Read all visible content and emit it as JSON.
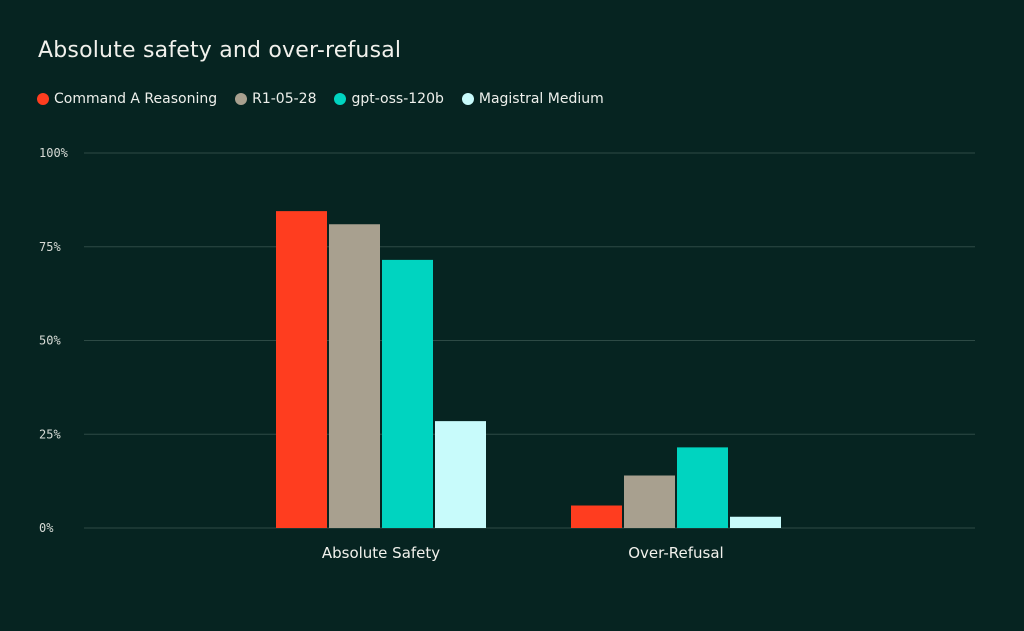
{
  "colors": {
    "background": "#062421",
    "command_a_reasoning": "#ff3d1f",
    "r1_05_28": "#a8a08f",
    "gpt_oss_120b": "#00d4c0",
    "magistral_medium": "#c8fbfb"
  },
  "chart_data": {
    "type": "bar",
    "title": "Absolute safety and over-refusal",
    "xlabel": "",
    "ylabel": "",
    "ylim": [
      0,
      100
    ],
    "y_ticks": [
      {
        "value": 0,
        "label": "0%"
      },
      {
        "value": 25,
        "label": "25%"
      },
      {
        "value": 50,
        "label": "50%"
      },
      {
        "value": 75,
        "label": "75%"
      },
      {
        "value": 100,
        "label": "100%"
      }
    ],
    "categories": [
      "Absolute Safety",
      "Over-Refusal"
    ],
    "legend_position": "top-left",
    "grid": true,
    "series": [
      {
        "name": "Command A Reasoning",
        "color": "#ff3d1f",
        "values": [
          84.5,
          6
        ]
      },
      {
        "name": "R1-05-28",
        "color": "#a8a08f",
        "values": [
          81,
          14
        ]
      },
      {
        "name": "gpt-oss-120b",
        "color": "#00d4c0",
        "values": [
          71.5,
          21.5
        ]
      },
      {
        "name": "Magistral Medium",
        "color": "#c8fbfb",
        "values": [
          28.5,
          3
        ]
      }
    ]
  }
}
